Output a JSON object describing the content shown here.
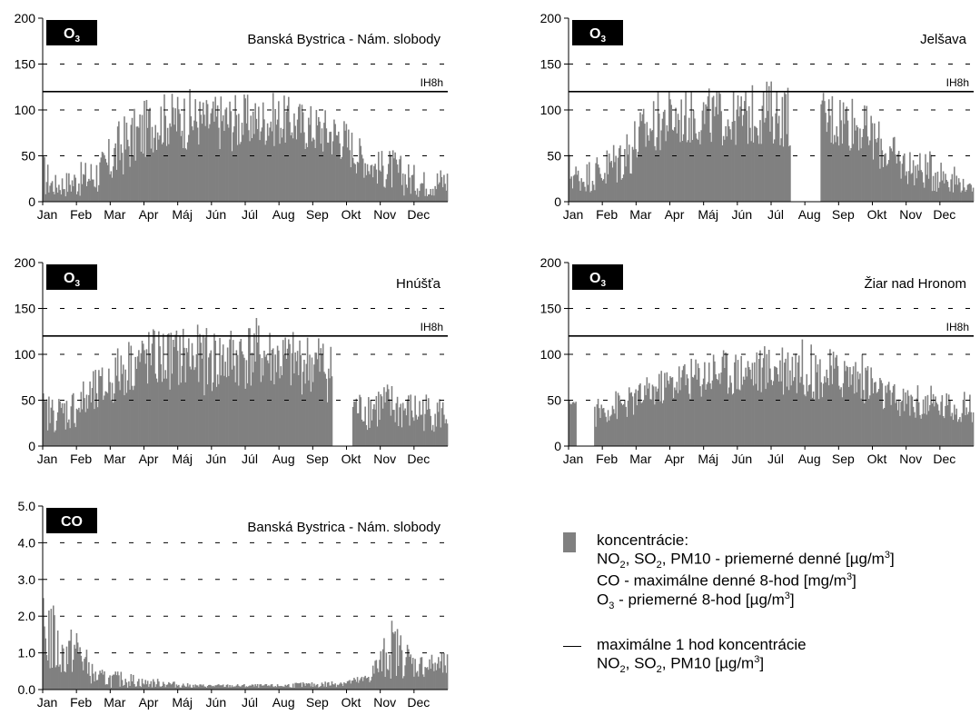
{
  "chart_data": [
    {
      "type": "bar",
      "pollutant": "O3",
      "station": "Banská Bystrica - Nám. slobody",
      "months": [
        "Jan",
        "Feb",
        "Mar",
        "Apr",
        "Máj",
        "Jún",
        "Júl",
        "Aug",
        "Sep",
        "Okt",
        "Nov",
        "Dec"
      ],
      "ylim": [
        0,
        200
      ],
      "yticks": [
        "0",
        "50",
        "100",
        "150",
        "200"
      ],
      "limit": {
        "label": "IH8h",
        "value": 120
      },
      "series": [
        {
          "monthly_profile": {
            "x": [
              0,
              0.3,
              0.7,
              1.2,
              1.8,
              2.3,
              2.8,
              3.3,
              3.8,
              4.3,
              4.8,
              5.3,
              5.8,
              6.3,
              6.8,
              7.3,
              7.8,
              8.3,
              8.8,
              9.3,
              9.8,
              10.3,
              10.8,
              11.3,
              11.8,
              12
            ],
            "lo": [
              5,
              5,
              5,
              5,
              8,
              25,
              40,
              55,
              60,
              55,
              60,
              55,
              55,
              60,
              60,
              60,
              55,
              50,
              45,
              30,
              20,
              10,
              5,
              5,
              5,
              5
            ],
            "hi": [
              55,
              30,
              35,
              45,
              60,
              95,
              105,
              120,
              120,
              125,
              115,
              120,
              120,
              115,
              120,
              115,
              110,
              105,
              100,
              75,
              55,
              60,
              45,
              35,
              40,
              40
            ]
          }
        }
      ]
    },
    {
      "type": "bar",
      "pollutant": "O3",
      "station": "Jelšava",
      "months": [
        "Jan",
        "Feb",
        "Mar",
        "Apr",
        "Máj",
        "Jún",
        "Júl",
        "Aug",
        "Sep",
        "Okt",
        "Nov",
        "Dec"
      ],
      "ylim": [
        0,
        200
      ],
      "yticks": [
        "0",
        "50",
        "100",
        "150",
        "200"
      ],
      "limit": {
        "label": "IH8h",
        "value": 120
      },
      "gaps": [
        [
          6.55,
          7.45
        ]
      ],
      "series": [
        {
          "monthly_profile": {
            "x": [
              0,
              0.3,
              0.7,
              1.2,
              1.8,
              2.3,
              2.8,
              3.3,
              3.8,
              4.3,
              4.8,
              5.3,
              5.8,
              6.3,
              6.8,
              7.3,
              7.8,
              8.3,
              8.8,
              9.3,
              9.8,
              10.3,
              10.8,
              11.3,
              11.8,
              12
            ],
            "lo": [
              10,
              10,
              10,
              10,
              25,
              45,
              55,
              60,
              60,
              60,
              60,
              60,
              60,
              60,
              55,
              55,
              55,
              55,
              50,
              30,
              20,
              15,
              10,
              10,
              10,
              10
            ],
            "hi": [
              55,
              40,
              50,
              65,
              90,
              110,
              125,
              120,
              125,
              125,
              120,
              125,
              135,
              130,
              130,
              120,
              125,
              125,
              105,
              85,
              65,
              55,
              55,
              45,
              20,
              20
            ]
          }
        }
      ]
    },
    {
      "type": "bar",
      "pollutant": "O3",
      "station": "Hnúšťa",
      "months": [
        "Jan",
        "Feb",
        "Mar",
        "Apr",
        "Máj",
        "Jún",
        "Júl",
        "Aug",
        "Sep",
        "Okt",
        "Nov",
        "Dec"
      ],
      "ylim": [
        0,
        200
      ],
      "yticks": [
        "0",
        "50",
        "100",
        "150",
        "200"
      ],
      "limit": {
        "label": "IH8h",
        "value": 120
      },
      "gaps": [
        [
          8.55,
          9.15
        ]
      ],
      "series": [
        {
          "monthly_profile": {
            "x": [
              0,
              0.3,
              0.7,
              1.2,
              1.8,
              2.3,
              2.8,
              3.3,
              3.8,
              4.3,
              4.8,
              5.3,
              5.8,
              6.3,
              6.8,
              7.3,
              7.8,
              8.3,
              8.8,
              9.3,
              9.8,
              10.3,
              10.8,
              11.3,
              11.8,
              12
            ],
            "lo": [
              15,
              15,
              15,
              20,
              35,
              50,
              60,
              60,
              60,
              60,
              55,
              55,
              60,
              60,
              60,
              55,
              55,
              50,
              40,
              20,
              15,
              15,
              15,
              15,
              15,
              15
            ],
            "hi": [
              60,
              55,
              60,
              75,
              90,
              115,
              125,
              130,
              130,
              135,
              130,
              130,
              135,
              140,
              130,
              125,
              125,
              125,
              100,
              60,
              70,
              70,
              60,
              60,
              55,
              55
            ]
          }
        }
      ]
    },
    {
      "type": "bar",
      "pollutant": "O3",
      "station": "Žiar nad Hronom",
      "months": [
        "Jan",
        "Feb",
        "Mar",
        "Apr",
        "Máj",
        "Jún",
        "Júl",
        "Aug",
        "Sep",
        "Okt",
        "Nov",
        "Dec"
      ],
      "ylim": [
        0,
        200
      ],
      "yticks": [
        "0",
        "50",
        "100",
        "150",
        "200"
      ],
      "limit": {
        "label": "IH8h",
        "value": 120
      },
      "gaps": [
        [
          0.2,
          0.75
        ]
      ],
      "series": [
        {
          "monthly_profile": {
            "x": [
              0,
              0.3,
              0.7,
              1.2,
              1.8,
              2.3,
              2.8,
              3.3,
              3.8,
              4.3,
              4.8,
              5.3,
              5.8,
              6.3,
              6.8,
              7.3,
              7.8,
              8.3,
              8.8,
              9.3,
              9.8,
              10.3,
              10.8,
              11.3,
              11.8,
              12
            ],
            "lo": [
              45,
              45,
              20,
              25,
              30,
              40,
              45,
              50,
              50,
              55,
              55,
              55,
              55,
              55,
              55,
              50,
              50,
              50,
              45,
              35,
              30,
              25,
              25,
              25,
              25,
              25
            ],
            "hi": [
              50,
              50,
              50,
              60,
              65,
              75,
              85,
              95,
              100,
              110,
              105,
              110,
              110,
              120,
              120,
              110,
              105,
              105,
              100,
              75,
              65,
              70,
              65,
              60,
              60,
              60
            ]
          }
        }
      ]
    },
    {
      "type": "bar",
      "pollutant": "CO",
      "station": "Banská Bystrica - Nám. slobody",
      "months": [
        "Jan",
        "Feb",
        "Mar",
        "Apr",
        "Máj",
        "Jún",
        "Júl",
        "Aug",
        "Sep",
        "Okt",
        "Nov",
        "Dec"
      ],
      "ylim": [
        0,
        5
      ],
      "yticks": [
        "0.0",
        "1.0",
        "2.0",
        "3.0",
        "4.0",
        "5.0"
      ],
      "limit": null,
      "series": [
        {
          "monthly_profile": {
            "x": [
              0,
              0.15,
              0.5,
              1.0,
              1.5,
              2.0,
              2.5,
              3.0,
              3.5,
              4.0,
              4.5,
              5.0,
              5.5,
              6.0,
              6.5,
              7.0,
              7.5,
              8.0,
              8.5,
              9.0,
              9.5,
              10.0,
              10.3,
              10.7,
              11.0,
              11.5,
              12
            ],
            "lo": [
              0.2,
              0.3,
              0.3,
              0.4,
              0.1,
              0.05,
              0.05,
              0.05,
              0.05,
              0.05,
              0.05,
              0.05,
              0.05,
              0.05,
              0.05,
              0.05,
              0.05,
              0.05,
              0.05,
              0.1,
              0.1,
              0.2,
              0.3,
              0.3,
              0.3,
              0.3,
              0.3
            ],
            "hi": [
              2.5,
              3.0,
              1.5,
              1.8,
              0.6,
              0.5,
              0.5,
              0.3,
              0.3,
              0.2,
              0.15,
              0.15,
              0.15,
              0.15,
              0.15,
              0.15,
              0.2,
              0.2,
              0.25,
              0.3,
              0.4,
              1.2,
              2.0,
              1.5,
              1.0,
              1.0,
              1.0
            ]
          }
        }
      ]
    }
  ],
  "legend": {
    "bar_title": "koncentrácie:",
    "bar_line1_prefix": "NO",
    "bar_line1_sub1": "2",
    "bar_line1_mid": ", SO",
    "bar_line1_sub2": "2",
    "bar_line1_suffix": ", PM10 - priemerné denné [µg/m",
    "bar_line1_sup": "3",
    "bar_line1_end": "]",
    "bar_line2_prefix": "CO - maximálne denné 8-hod [mg/m",
    "bar_line2_sup": "3",
    "bar_line2_end": "]",
    "bar_line3_prefix": "O",
    "bar_line3_sub": "3",
    "bar_line3_suffix": " - priemerné 8-hod [µg/m",
    "bar_line3_sup": "3",
    "bar_line3_end": "]",
    "line_title": "maximálne 1 hod koncentrácie",
    "line_line1_prefix": "NO",
    "line_line1_sub1": "2",
    "line_line1_mid": ", SO",
    "line_line1_sub2": "2",
    "line_line1_suffix": ", PM10  [µg/m",
    "line_line1_sup": "3",
    "line_line1_end": "]"
  },
  "colors": {
    "bar": "#808080",
    "badge": "#000000",
    "grid": "#000000"
  }
}
